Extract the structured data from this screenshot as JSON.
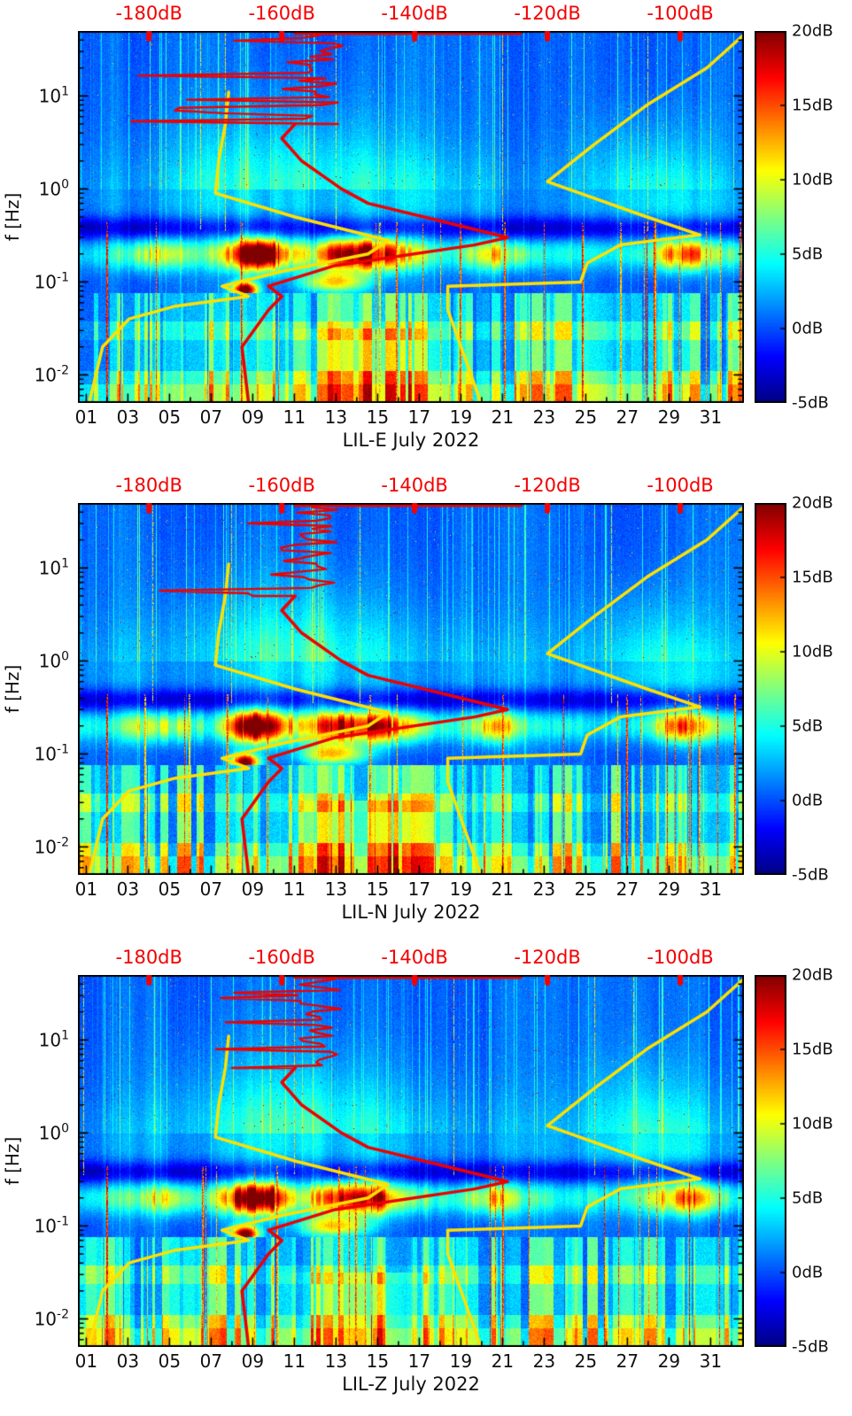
{
  "chart_data": {
    "type": "heatmap",
    "subtype": "spectrogram",
    "colormap": "jet",
    "panels": [
      {
        "id": "LIL-E",
        "title": "LIL-E July 2022"
      },
      {
        "id": "LIL-N",
        "title": "LIL-N July 2022"
      },
      {
        "id": "LIL-Z",
        "title": "LIL-Z July 2022"
      }
    ],
    "x_axis": {
      "tick_labels": [
        "01",
        "03",
        "05",
        "07",
        "09",
        "11",
        "13",
        "15",
        "17",
        "19",
        "21",
        "23",
        "25",
        "27",
        "29",
        "31"
      ],
      "tick_values_days": [
        1,
        3,
        5,
        7,
        9,
        11,
        13,
        15,
        17,
        19,
        21,
        23,
        25,
        27,
        29,
        31
      ],
      "range_days": [
        0.6,
        32.6
      ]
    },
    "y_axis": {
      "label": "f [Hz]",
      "scale": "log",
      "tick_labels": [
        "10^1",
        "10^0",
        "10^-1",
        "10^-2"
      ],
      "tick_exponents": [
        1,
        0,
        -1,
        -2
      ],
      "range_hz": [
        0.005,
        50
      ]
    },
    "top_axis": {
      "color": "#f40000",
      "tick_labels": [
        "-180dB",
        "-160dB",
        "-140dB",
        "-120dB",
        "-100dB"
      ],
      "tick_values_db": [
        -180,
        -160,
        -140,
        -120,
        -100
      ],
      "range_db": [
        -190.7,
        -90.4
      ]
    },
    "colorbar": {
      "colormap": "jet",
      "tick_labels": [
        "20dB",
        "15dB",
        "10dB",
        "5dB",
        "0dB",
        "-5dB"
      ],
      "tick_values_db": [
        20,
        15,
        10,
        5,
        0,
        -5
      ],
      "range_db": [
        -5,
        20
      ]
    },
    "overlay_curves": [
      {
        "name": "low-noise-model",
        "color": "#ffe100",
        "points_freq_db": [
          [
            0.005,
            -189
          ],
          [
            0.02,
            -187
          ],
          [
            0.04,
            -183
          ],
          [
            0.055,
            -176
          ],
          [
            0.07,
            -165
          ],
          [
            0.09,
            -169
          ],
          [
            0.13,
            -160
          ],
          [
            0.2,
            -147
          ],
          [
            0.28,
            -144
          ],
          [
            0.5,
            -158
          ],
          [
            0.9,
            -170
          ],
          [
            2,
            -169.5
          ],
          [
            5,
            -168.5
          ],
          [
            11,
            -168
          ]
        ]
      },
      {
        "name": "high-noise-model",
        "color": "#ffe100",
        "points_freq_db": [
          [
            0.005,
            -130
          ],
          [
            0.02,
            -133
          ],
          [
            0.05,
            -135
          ],
          [
            0.09,
            -135
          ],
          [
            0.1,
            -115
          ],
          [
            0.16,
            -114
          ],
          [
            0.25,
            -109
          ],
          [
            0.32,
            -97
          ],
          [
            0.5,
            -105
          ],
          [
            1.2,
            -120
          ],
          [
            3,
            -113
          ],
          [
            8,
            -105
          ],
          [
            20,
            -96
          ],
          [
            45,
            -90.5
          ]
        ]
      },
      {
        "name": "median-psd",
        "color": "#ec0000",
        "points_freq_db": [
          [
            0.005,
            -165
          ],
          [
            0.02,
            -166
          ],
          [
            0.05,
            -162
          ],
          [
            0.07,
            -160
          ],
          [
            0.09,
            -162
          ],
          [
            0.15,
            -152
          ],
          [
            0.25,
            -131
          ],
          [
            0.3,
            -126
          ],
          [
            0.45,
            -136
          ],
          [
            0.7,
            -147
          ],
          [
            1,
            -151
          ],
          [
            2,
            -157
          ],
          [
            3.5,
            -160
          ],
          [
            5,
            -158
          ]
        ],
        "noisy_top": {
          "freq_range": [
            5,
            45
          ],
          "db_center": -156,
          "db_excursion_max": -128
        },
        "top_bar": {
          "freq": 47,
          "db_range": [
            -158,
            -124
          ]
        }
      }
    ]
  }
}
